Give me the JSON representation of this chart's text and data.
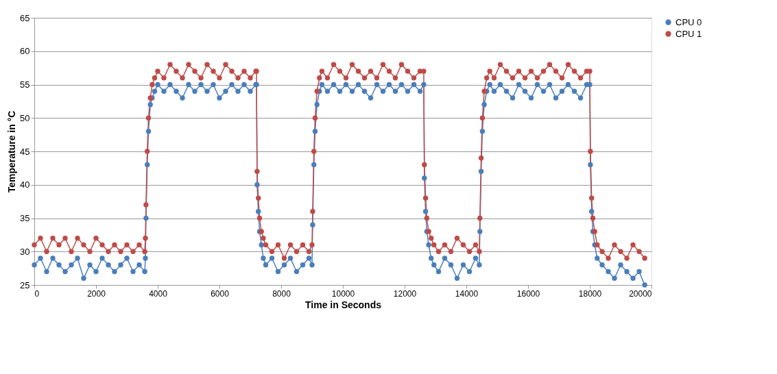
{
  "chart_data": {
    "type": "line",
    "xlabel": "Time in Seconds",
    "ylabel": "Temperature in °C",
    "xlim": [
      0,
      20000
    ],
    "xticks": [
      0,
      2000,
      4000,
      6000,
      8000,
      10000,
      12000,
      14000,
      16000,
      18000,
      20000
    ],
    "ylim": [
      25,
      65
    ],
    "yticks": [
      25,
      30,
      35,
      40,
      45,
      50,
      55,
      60,
      65
    ],
    "grid": "y",
    "legend": "right",
    "marker": "circle",
    "line_style": "solid",
    "x": [
      0,
      200,
      400,
      600,
      800,
      1000,
      1200,
      1400,
      1600,
      1800,
      2000,
      2200,
      2400,
      2600,
      2800,
      3000,
      3200,
      3400,
      3580,
      3600,
      3620,
      3660,
      3700,
      3760,
      3820,
      3900,
      4000,
      4200,
      4400,
      4600,
      4800,
      5000,
      5200,
      5400,
      5600,
      5800,
      6000,
      6200,
      6400,
      6600,
      6800,
      7000,
      7180,
      7200,
      7220,
      7260,
      7300,
      7360,
      7420,
      7500,
      7700,
      7900,
      8100,
      8300,
      8500,
      8700,
      8900,
      9000,
      9020,
      9060,
      9100,
      9160,
      9240,
      9320,
      9500,
      9700,
      9900,
      10100,
      10300,
      10500,
      10700,
      10900,
      11100,
      11300,
      11500,
      11700,
      11900,
      12100,
      12300,
      12500,
      12620,
      12640,
      12680,
      12720,
      12780,
      12860,
      12950,
      13100,
      13300,
      13500,
      13700,
      13900,
      14100,
      14300,
      14420,
      14440,
      14480,
      14520,
      14580,
      14660,
      14760,
      14900,
      15100,
      15300,
      15500,
      15700,
      15900,
      16100,
      16300,
      16500,
      16700,
      16900,
      17100,
      17300,
      17500,
      17700,
      17900,
      18000,
      18020,
      18060,
      18100,
      18160,
      18240,
      18400,
      18600,
      18800,
      19000,
      19200,
      19400,
      19600,
      19780
    ],
    "series": [
      {
        "name": "CPU 0",
        "color": "#4a7ebb",
        "values": [
          28,
          29,
          27,
          29,
          28,
          27,
          28,
          29,
          26,
          28,
          27,
          29,
          28,
          27,
          28,
          29,
          27,
          28,
          27,
          29,
          35,
          43,
          48,
          52,
          53,
          54,
          55,
          54,
          55,
          54,
          53,
          55,
          54,
          55,
          54,
          55,
          53,
          54,
          55,
          54,
          55,
          54,
          55,
          55,
          40,
          36,
          33,
          31,
          29,
          28,
          29,
          27,
          28,
          29,
          27,
          28,
          29,
          28,
          34,
          43,
          48,
          52,
          54,
          55,
          54,
          55,
          54,
          55,
          54,
          55,
          54,
          53,
          55,
          54,
          55,
          54,
          55,
          54,
          55,
          54,
          55,
          41,
          36,
          33,
          31,
          29,
          28,
          27,
          29,
          28,
          26,
          28,
          27,
          29,
          28,
          33,
          42,
          48,
          52,
          54,
          55,
          54,
          55,
          54,
          53,
          55,
          54,
          53,
          55,
          54,
          55,
          53,
          54,
          55,
          54,
          53,
          55,
          55,
          43,
          36,
          33,
          31,
          29,
          28,
          27,
          26,
          28,
          27,
          26,
          27,
          25
        ]
      },
      {
        "name": "CPU 1",
        "color": "#be4b48",
        "values": [
          31,
          32,
          30,
          32,
          31,
          32,
          30,
          32,
          31,
          30,
          32,
          31,
          30,
          31,
          30,
          31,
          30,
          31,
          30,
          32,
          37,
          45,
          50,
          53,
          55,
          56,
          57,
          56,
          58,
          57,
          56,
          58,
          57,
          56,
          58,
          57,
          56,
          58,
          57,
          56,
          57,
          56,
          57,
          57,
          42,
          38,
          35,
          33,
          32,
          31,
          30,
          31,
          29,
          31,
          30,
          31,
          30,
          31,
          36,
          45,
          50,
          54,
          56,
          57,
          56,
          58,
          57,
          56,
          58,
          57,
          56,
          57,
          56,
          58,
          57,
          56,
          58,
          57,
          56,
          57,
          57,
          43,
          38,
          35,
          33,
          32,
          31,
          30,
          31,
          30,
          32,
          31,
          30,
          31,
          30,
          35,
          44,
          50,
          54,
          56,
          57,
          56,
          58,
          57,
          56,
          57,
          56,
          57,
          56,
          57,
          58,
          57,
          56,
          58,
          57,
          56,
          57,
          57,
          45,
          38,
          35,
          33,
          31,
          30,
          29,
          31,
          30,
          29,
          31,
          30,
          29
        ]
      }
    ]
  }
}
